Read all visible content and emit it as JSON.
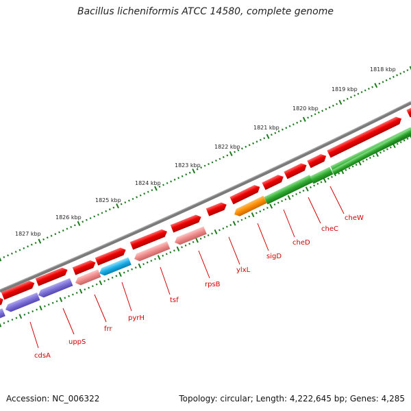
{
  "title": "Bacillus licheniformis ATCC 14580, complete genome",
  "accession": "Accession: NC_006322",
  "summary": "Topology: circular; Length: 4,222,645 bp; Genes: 4,285",
  "scale_labels": [
    "1818 kbp",
    "1819 kbp",
    "1820 kbp",
    "1821 kbp",
    "1822 kbp",
    "1823 kbp",
    "1824 kbp",
    "1825 kbp",
    "1826 kbp",
    "1827 kbp"
  ],
  "gene_labels": [
    "cdsA",
    "uppS",
    "frr",
    "pyrH",
    "tsf",
    "rpsB",
    "ylxL",
    "sigD",
    "cheD",
    "cheC",
    "cheW"
  ],
  "colors": {
    "backbone": "#7a7a7a",
    "forward_gene": "#ee0000",
    "reverse_default": "#7a6fd6",
    "reverse_pink": "#ee8a8a",
    "reverse_cyan": "#19aee8",
    "reverse_orange": "#ff8c00",
    "reverse_green": "#2faa2f",
    "tick": "#1a7a1a",
    "label": "#d40000"
  }
}
